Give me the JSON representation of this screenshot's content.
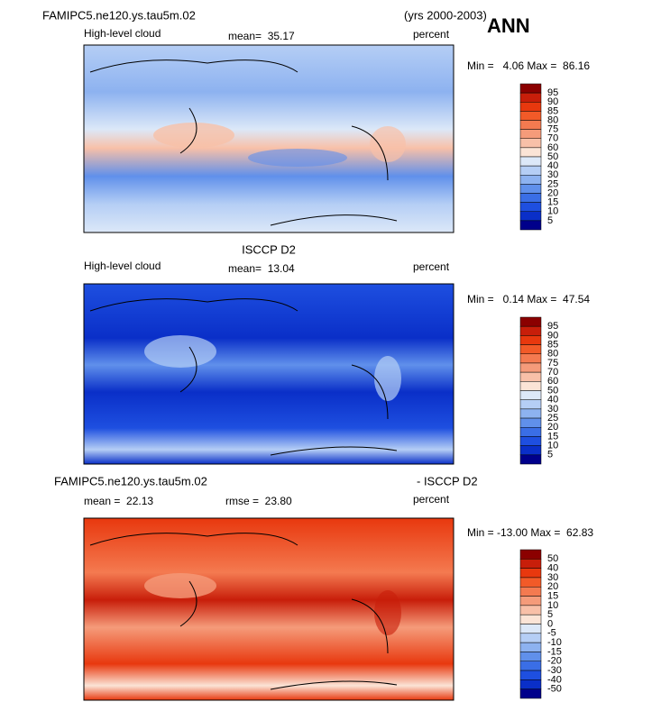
{
  "header": {
    "title": "FAMIPC5.ne120.ys.tau5m.02",
    "years": "(yrs 2000-2003)",
    "season": "ANN"
  },
  "panels": [
    {
      "left_label": "High-level cloud",
      "center_label": "mean=  35.17",
      "units": "percent",
      "range_label": "Min =   4.06 Max =  86.16",
      "colorbar": {
        "labels": [
          95,
          90,
          85,
          80,
          75,
          70,
          60,
          50,
          40,
          30,
          25,
          20,
          15,
          10,
          5
        ],
        "colors": [
          "#8b0000",
          "#c81e0a",
          "#e8380e",
          "#f25a28",
          "#f47a50",
          "#f59b7a",
          "#f8c0a8",
          "#fbe4d6",
          "#dce8f8",
          "#b5cef5",
          "#8db2f0",
          "#6090eb",
          "#3a6ee6",
          "#1e4fe0",
          "#0a2fc8",
          "#00008b"
        ]
      }
    },
    {
      "title": "ISCCP D2",
      "left_label": "High-level cloud",
      "center_label": "mean=  13.04",
      "units": "percent",
      "range_label": "Min =   0.14 Max =  47.54",
      "colorbar": {
        "labels": [
          95,
          90,
          85,
          80,
          75,
          70,
          60,
          50,
          40,
          30,
          25,
          20,
          15,
          10,
          5
        ],
        "colors": [
          "#8b0000",
          "#c81e0a",
          "#e8380e",
          "#f25a28",
          "#f47a50",
          "#f59b7a",
          "#f8c0a8",
          "#fbe4d6",
          "#dce8f8",
          "#b5cef5",
          "#8db2f0",
          "#6090eb",
          "#3a6ee6",
          "#1e4fe0",
          "#0a2fc8",
          "#00008b"
        ]
      }
    },
    {
      "title": "FAMIPC5.ne120.ys.tau5m.02",
      "title_right": "- ISCCP D2",
      "left_label": "mean =  22.13",
      "center_label": "rmse =  23.80",
      "units": "percent",
      "range_label": "Min = -13.00 Max =  62.83",
      "colorbar": {
        "labels": [
          50,
          40,
          30,
          20,
          15,
          10,
          5,
          0,
          -5,
          -10,
          -15,
          -20,
          -30,
          -40,
          -50
        ],
        "colors": [
          "#8b0000",
          "#c81e0a",
          "#e8380e",
          "#f25a28",
          "#f47a50",
          "#f59b7a",
          "#f8c0a8",
          "#fbe4d6",
          "#dce8f8",
          "#b5cef5",
          "#8db2f0",
          "#6090eb",
          "#3a6ee6",
          "#1e4fe0",
          "#0a2fc8",
          "#00008b"
        ]
      }
    }
  ]
}
